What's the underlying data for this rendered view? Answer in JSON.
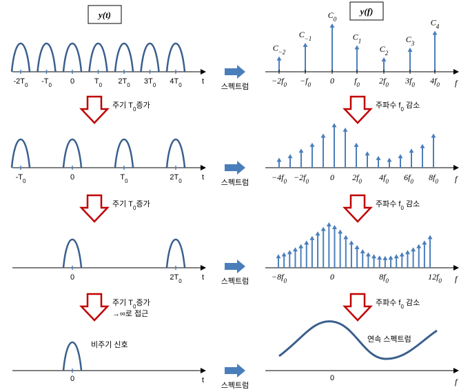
{
  "titles": {
    "time": "y(t)",
    "freq": "y(f)"
  },
  "time_axis_symbol": "t",
  "freq_axis_symbol": "f",
  "spectrum_label": "스펙트럼",
  "time_rows": [
    {
      "ticks": [
        "-2T0",
        "-T0",
        "0",
        "T0",
        "2T0",
        "3T0",
        "4T0"
      ]
    },
    {
      "ticks": [
        "-T0",
        "0",
        "T0",
        "2T0"
      ]
    },
    {
      "ticks": [
        "0",
        "2T0"
      ]
    },
    {
      "ticks": [
        "0"
      ]
    }
  ],
  "freq_rows": [
    {
      "ticks": [
        "−2f0",
        "−f0",
        "0",
        "f0",
        "2f0",
        "3f0",
        "4f0"
      ],
      "coeff_labels": [
        "C−2",
        "C−1",
        "C0",
        "C1",
        "C2",
        "C3",
        "C4"
      ],
      "amplitudes": [
        0.32,
        0.6,
        1.0,
        0.55,
        0.3,
        0.5,
        0.85
      ]
    },
    {
      "ticks": [
        "−4f0",
        "−2f0",
        "0",
        "2f0",
        "4f0",
        "6f0",
        "8f0"
      ],
      "amplitudes": [
        0.22,
        0.3,
        0.42,
        0.55,
        0.75,
        0.98,
        0.88,
        0.55,
        0.36,
        0.26,
        0.22,
        0.3,
        0.42,
        0.52,
        0.75
      ]
    },
    {
      "ticks": [
        "−8f0",
        "0",
        "8f0",
        "12f0"
      ],
      "amplitudes": [
        0.3,
        0.34,
        0.39,
        0.45,
        0.52,
        0.6,
        0.7,
        0.8,
        0.9,
        1.0,
        0.94,
        0.84,
        0.72,
        0.6,
        0.5,
        0.41,
        0.34,
        0.3,
        0.27,
        0.26,
        0.27,
        0.3,
        0.34,
        0.39,
        0.45,
        0.52,
        0.6,
        0.72
      ]
    },
    {
      "ticks": [
        "0"
      ],
      "label": "연속 스펙트럼"
    }
  ],
  "steps": [
    {
      "time_text": [
        "주기 T0증가"
      ],
      "freq_text": "주파수 f0 감소"
    },
    {
      "time_text": [
        "주기 T0증가"
      ],
      "freq_text": "주파수 f0 감소"
    },
    {
      "time_text": [
        "주기 T0증가",
        "→∞로 접근"
      ],
      "freq_text": "주파수 f0 감소"
    }
  ],
  "aperiodic_label": "비주기 신호",
  "colors": {
    "signal": "#3a5f8c",
    "stem": "#4a7ebb",
    "arrow_outline": "#c00000",
    "spectrum_arrow": "#4a7ebb"
  }
}
